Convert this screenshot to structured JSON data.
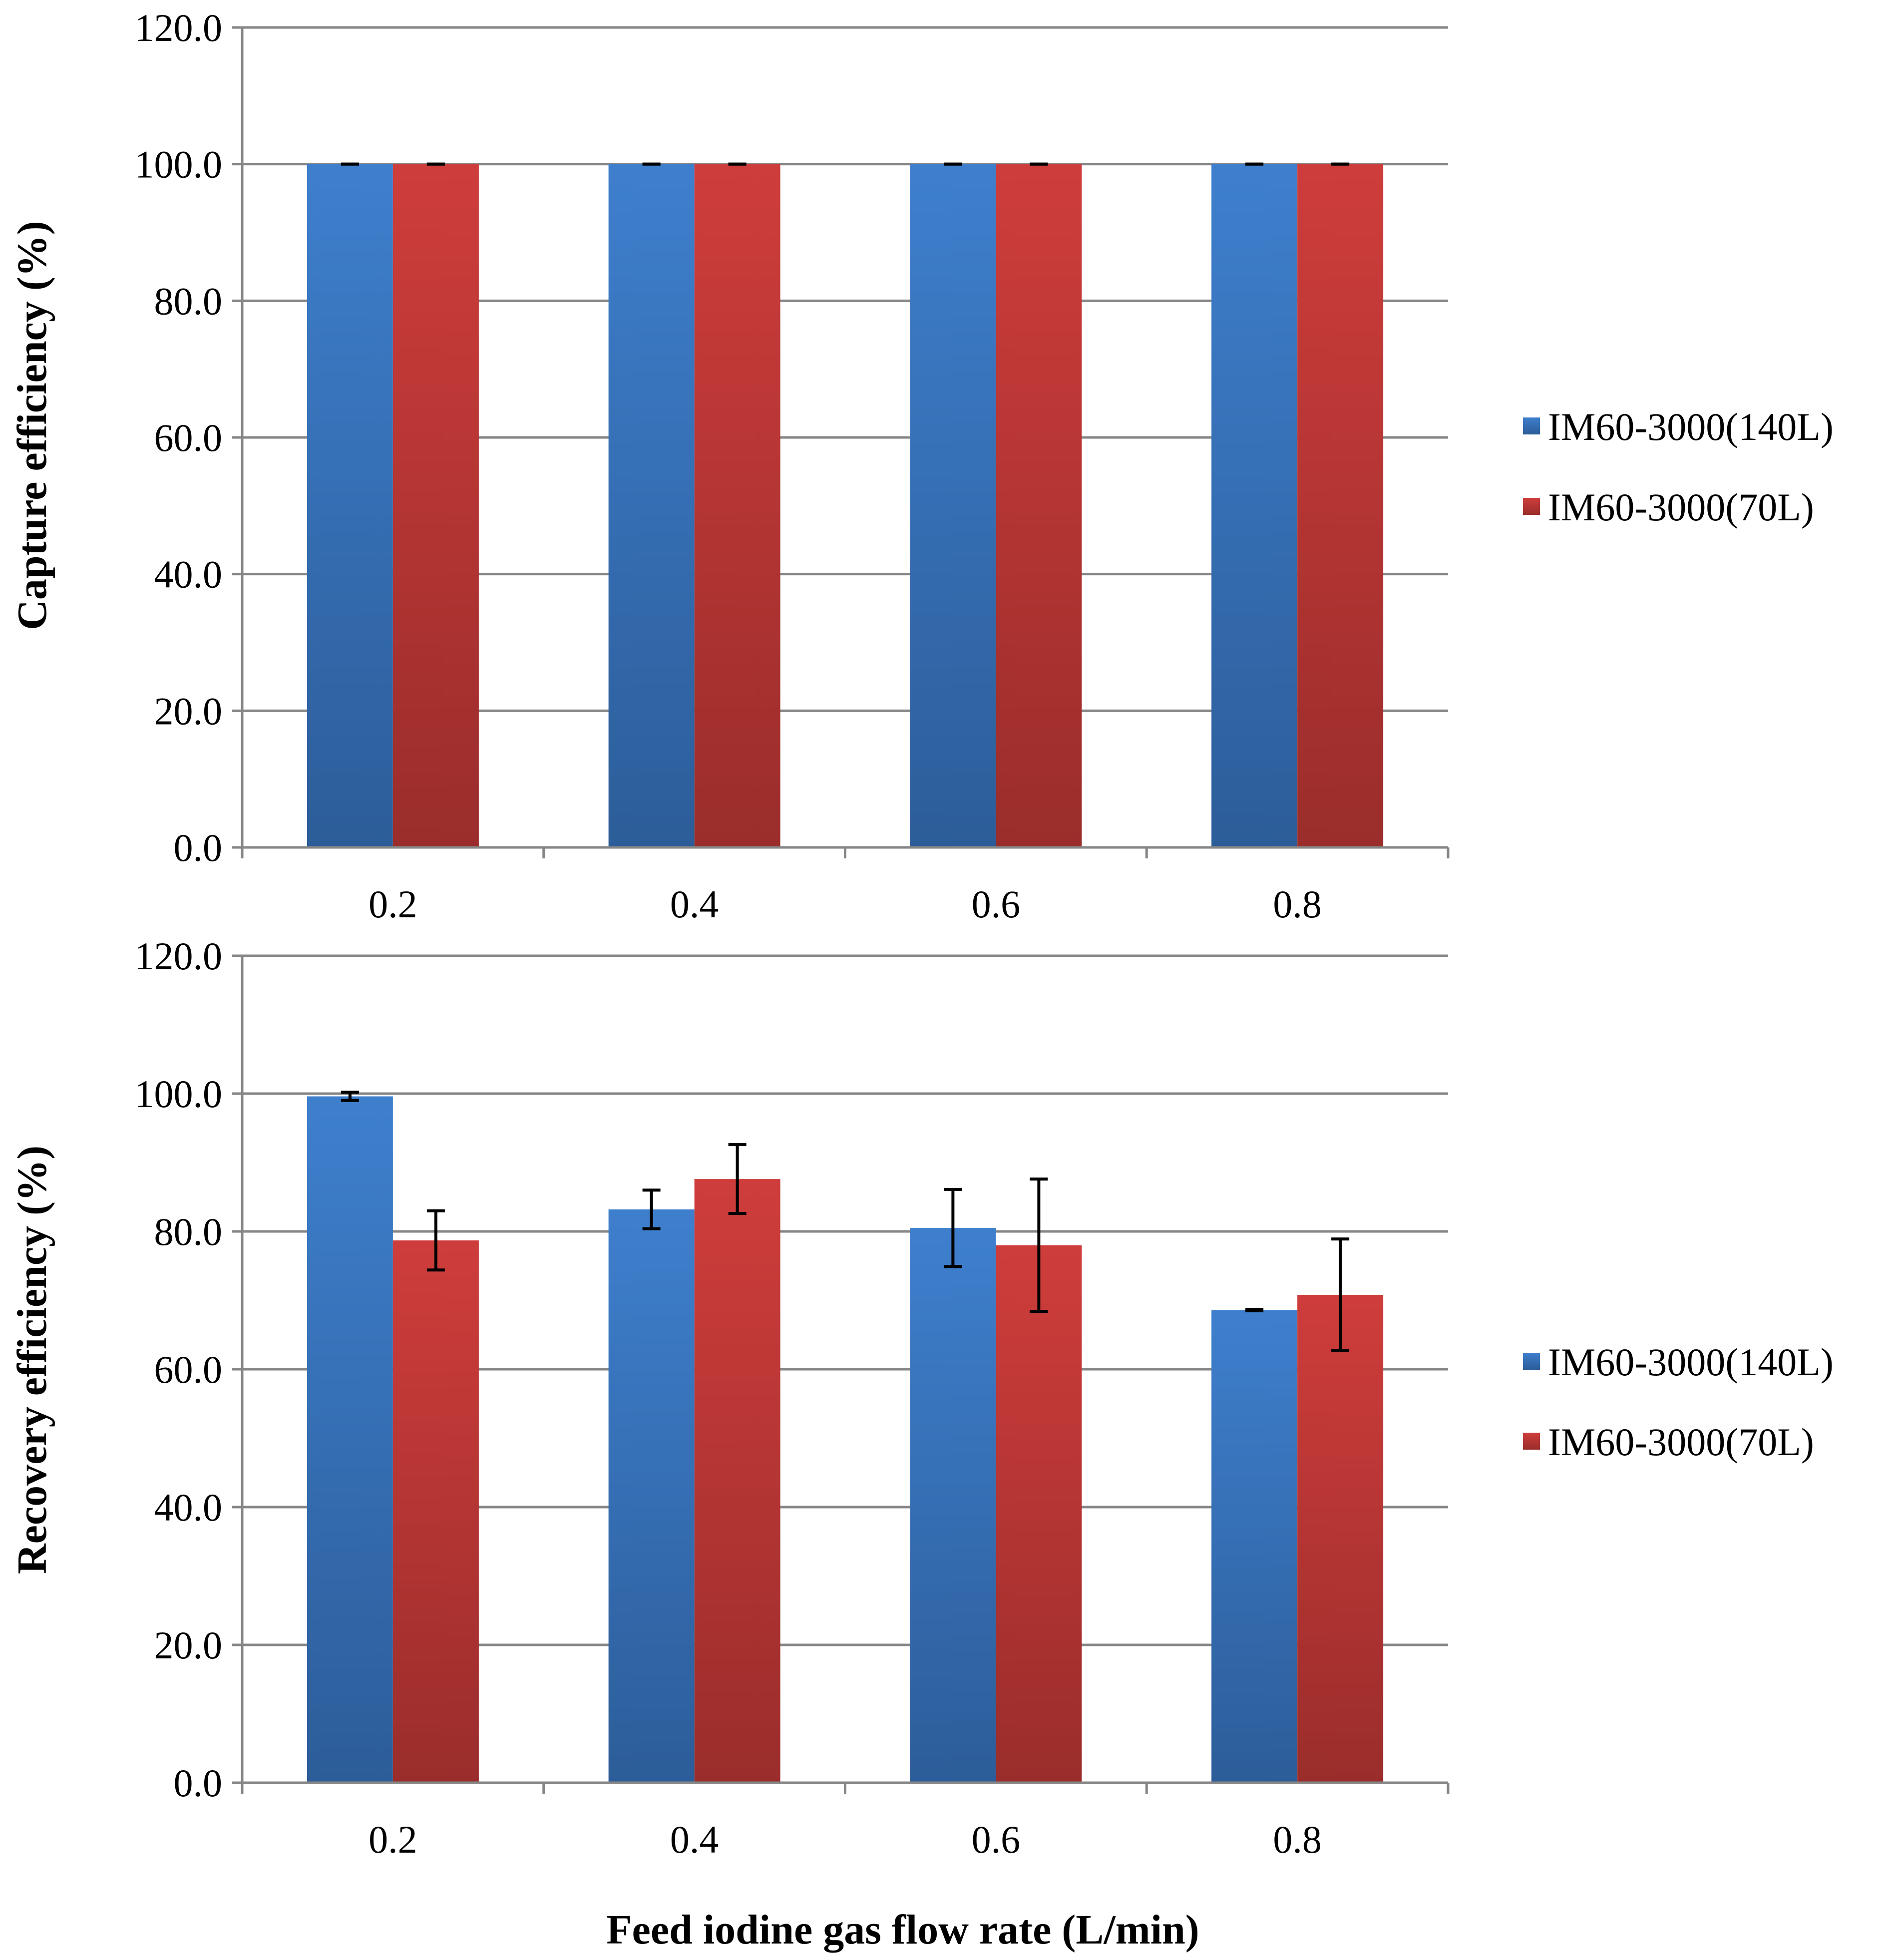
{
  "chart_data": [
    {
      "type": "bar",
      "ylabel": "Capture efficiency (%)",
      "xlabel": "",
      "categories": [
        "0.2",
        "0.4",
        "0.6",
        "0.8"
      ],
      "ylim": [
        0,
        120
      ],
      "ytick_labels": [
        "0.0",
        "20.0",
        "40.0",
        "60.0",
        "80.0",
        "100.0",
        "120.0"
      ],
      "ytick_values": [
        0,
        20,
        40,
        60,
        80,
        100,
        120
      ],
      "grid": true,
      "legend_position": "right",
      "series": [
        {
          "name": "IM60-3000(140L)",
          "values": [
            100.0,
            100.0,
            100.0,
            100.0
          ],
          "errors": [
            0.0,
            0.0,
            0.0,
            0.0
          ]
        },
        {
          "name": "IM60-3000(70L)",
          "values": [
            100.0,
            100.0,
            100.0,
            100.0
          ],
          "errors": [
            0.0,
            0.0,
            0.0,
            0.0
          ]
        }
      ]
    },
    {
      "type": "bar",
      "ylabel": "Recovery efficiency (%)",
      "xlabel": "Feed iodine gas flow rate (L/min)",
      "categories": [
        "0.2",
        "0.4",
        "0.6",
        "0.8"
      ],
      "ylim": [
        0,
        120
      ],
      "ytick_labels": [
        "0.0",
        "20.0",
        "40.0",
        "60.0",
        "80.0",
        "100.0",
        "120.0"
      ],
      "ytick_values": [
        0,
        20,
        40,
        60,
        80,
        100,
        120
      ],
      "grid": true,
      "legend_position": "right",
      "series": [
        {
          "name": "IM60-3000(140L)",
          "values": [
            99.6,
            83.2,
            80.5,
            68.6
          ],
          "errors": [
            0.6,
            2.8,
            5.6,
            0.1
          ]
        },
        {
          "name": "IM60-3000(70L)",
          "values": [
            78.7,
            87.6,
            78.0,
            70.8
          ],
          "errors": [
            4.3,
            5.0,
            9.6,
            8.1
          ]
        }
      ]
    }
  ],
  "colors": {
    "series1_top": "#3e7fcd",
    "series1_bottom": "#2c5d99",
    "series2_top": "#ce3d3b",
    "series2_bottom": "#9a2d2b",
    "grid": "#868686"
  }
}
